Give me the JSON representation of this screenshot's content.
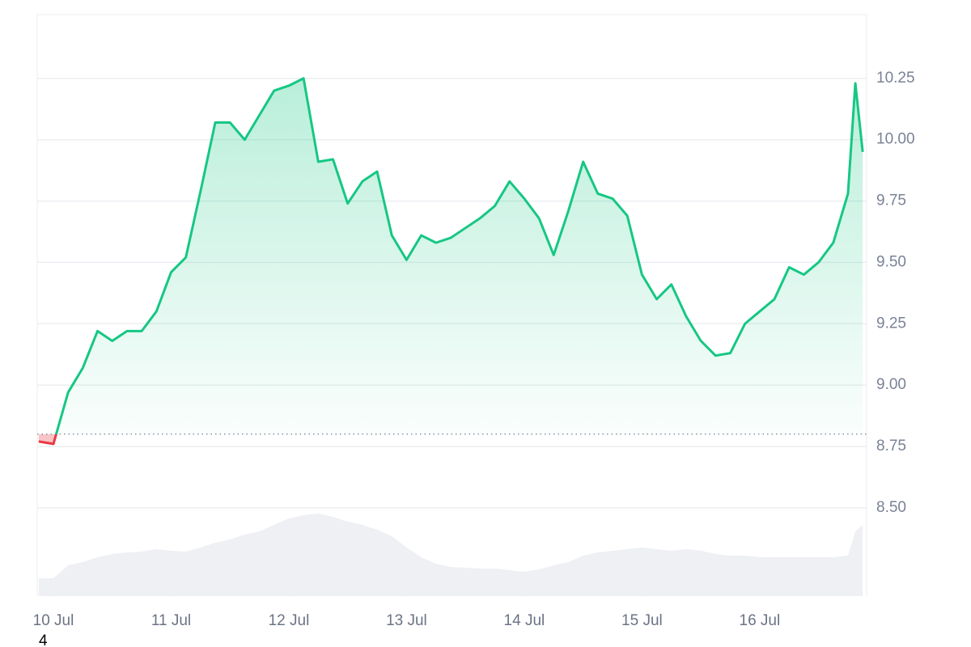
{
  "chart_data": {
    "type": "line",
    "x": [
      -3,
      0,
      3,
      6,
      9,
      12,
      15,
      18,
      21,
      24,
      27,
      30,
      33,
      36,
      39,
      42,
      45,
      48,
      51,
      54,
      57,
      60,
      63,
      66,
      69,
      72,
      75,
      78,
      81,
      84,
      87,
      90,
      93,
      96,
      99,
      102,
      105,
      108,
      111,
      114,
      117,
      120,
      123,
      126,
      129,
      132,
      135,
      138,
      141,
      144,
      147,
      150,
      153,
      156,
      159,
      162,
      163.5,
      165
    ],
    "series": [
      {
        "color": "#16c784",
        "below_color": "#ea3943",
        "values": [
          8.77,
          8.76,
          8.97,
          9.07,
          9.22,
          9.18,
          9.22,
          9.22,
          9.3,
          9.46,
          9.52,
          9.79,
          10.07,
          10.07,
          10.0,
          10.1,
          10.2,
          10.22,
          10.25,
          9.91,
          9.92,
          9.74,
          9.83,
          9.87,
          9.61,
          9.51,
          9.61,
          9.58,
          9.6,
          9.64,
          9.68,
          9.73,
          9.83,
          9.76,
          9.68,
          9.53,
          9.71,
          9.91,
          9.78,
          9.76,
          9.69,
          9.45,
          9.35,
          9.41,
          9.28,
          9.18,
          9.12,
          9.13,
          9.25,
          9.3,
          9.35,
          9.48,
          9.45,
          9.5,
          9.58,
          9.78,
          10.23,
          9.95
        ]
      }
    ],
    "volume": {
      "color": "#eef0f3",
      "values": [
        22,
        22,
        38,
        42,
        48,
        52,
        54,
        55,
        58,
        56,
        55,
        60,
        66,
        70,
        76,
        80,
        88,
        96,
        100,
        102,
        98,
        92,
        88,
        82,
        74,
        60,
        48,
        40,
        36,
        35,
        34,
        34,
        32,
        30,
        33,
        38,
        42,
        50,
        54,
        56,
        58,
        60,
        58,
        56,
        58,
        56,
        52,
        50,
        50,
        48,
        48,
        48,
        48,
        48,
        48,
        50,
        80,
        88
      ]
    },
    "baseline": 8.8,
    "xlim": [
      -3.3,
      165.8
    ],
    "xticks": [
      {
        "value": 0,
        "label": "10 Jul"
      },
      {
        "value": 24,
        "label": "11 Jul"
      },
      {
        "value": 48,
        "label": "12 Jul"
      },
      {
        "value": 72,
        "label": "13 Jul"
      },
      {
        "value": 96,
        "label": "14 Jul"
      },
      {
        "value": 120,
        "label": "15 Jul"
      },
      {
        "value": 144,
        "label": "16 Jul"
      }
    ],
    "ylim": [
      8.14,
      10.51
    ],
    "yticks": [
      {
        "value": 8.5,
        "label": "8.50"
      },
      8.75,
      {
        "value": 9,
        "label": "9.00"
      },
      9.25,
      {
        "value": 9.5,
        "label": "9.50"
      },
      9.75,
      {
        "value": 10,
        "label": "10.00"
      },
      10.25
    ],
    "grid": true,
    "footnote": "4"
  }
}
